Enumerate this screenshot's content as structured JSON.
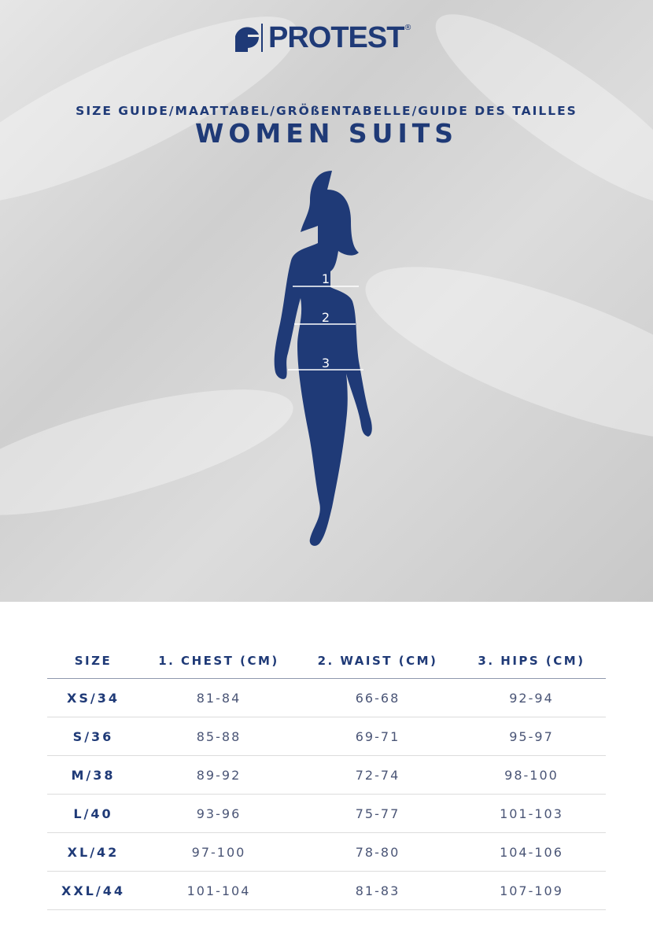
{
  "brand": {
    "name": "PROTEST",
    "registered": "®",
    "color": "#1f3a77"
  },
  "header": {
    "subtitle": "SIZE GUIDE/MAATTABEL/GRÖßENTABELLE/GUIDE DES TAILLES",
    "title": "WOMEN SUITS"
  },
  "figure": {
    "markers": [
      "1",
      "2",
      "3"
    ]
  },
  "table": {
    "headers": [
      "SIZE",
      "1. CHEST (CM)",
      "2. WAIST (CM)",
      "3. HIPS (CM)"
    ],
    "rows": [
      [
        "XS/34",
        "81-84",
        "66-68",
        "92-94"
      ],
      [
        "S/36",
        "85-88",
        "69-71",
        "95-97"
      ],
      [
        "M/38",
        "89-92",
        "72-74",
        "98-100"
      ],
      [
        "L/40",
        "93-96",
        "75-77",
        "101-103"
      ],
      [
        "XL/42",
        "97-100",
        "78-80",
        "104-106"
      ],
      [
        "XXL/44",
        "101-104",
        "81-83",
        "107-109"
      ]
    ]
  }
}
